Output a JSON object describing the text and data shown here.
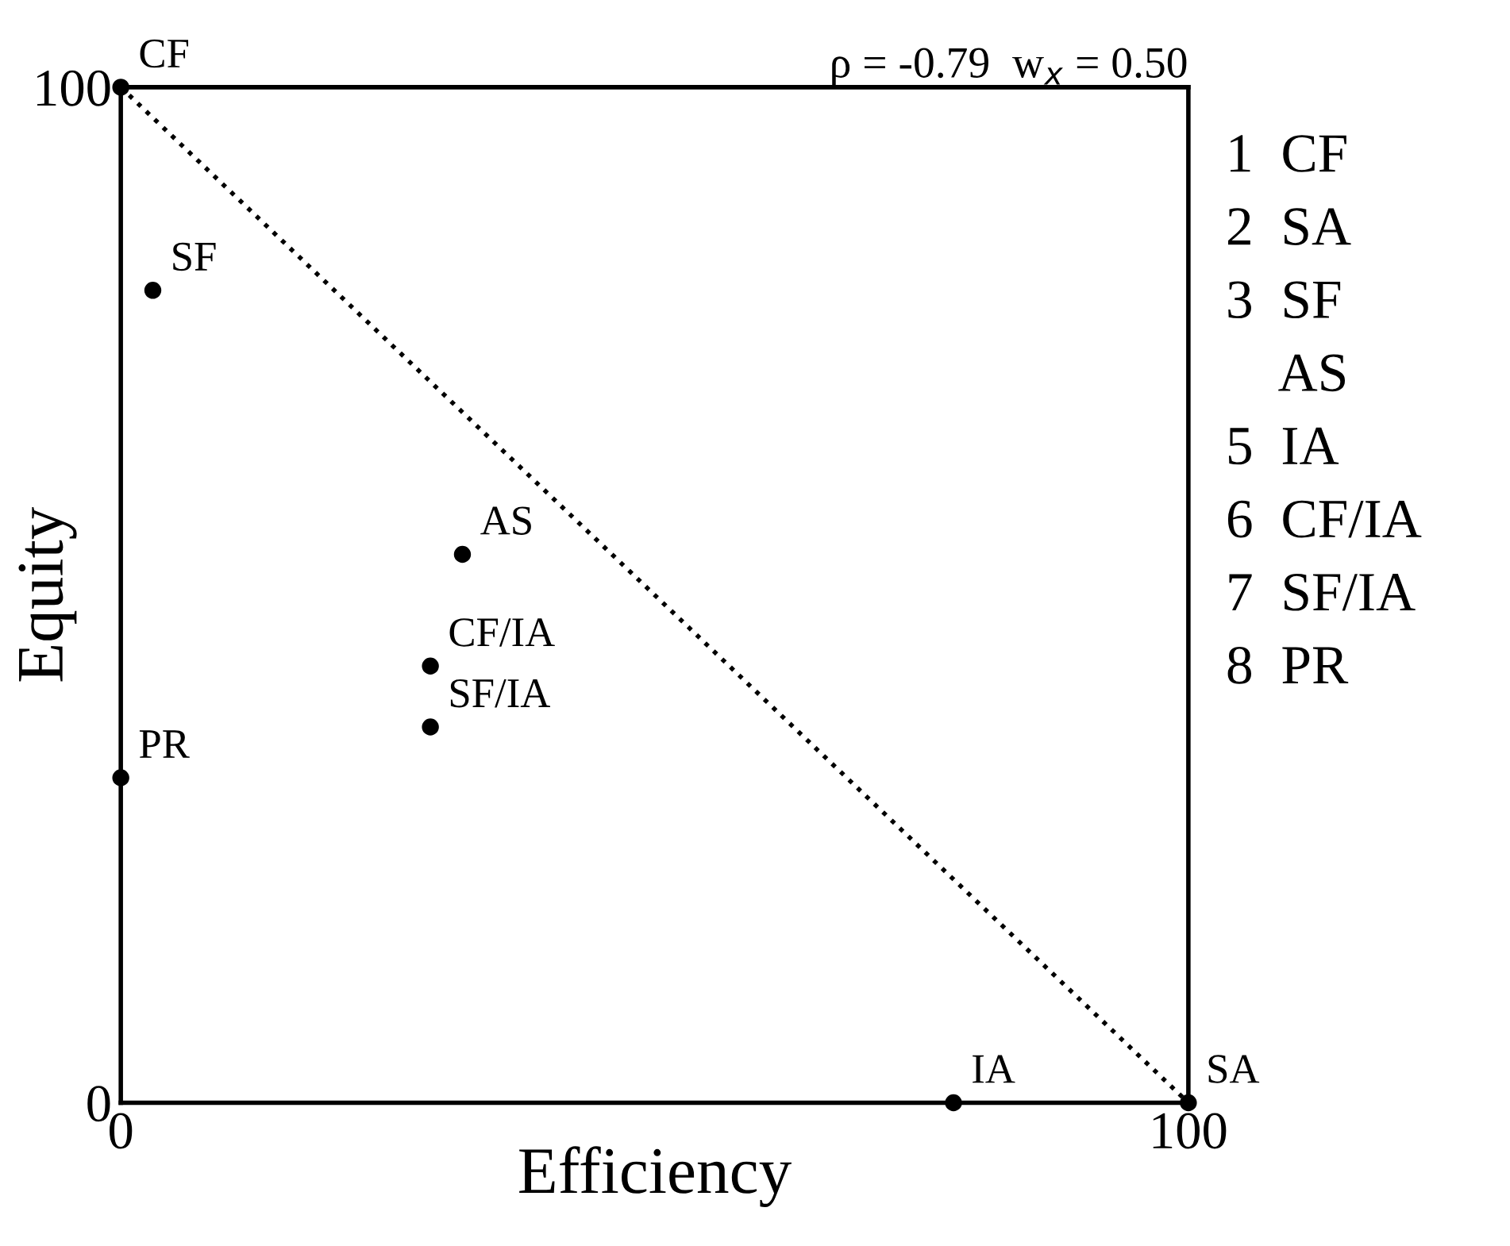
{
  "chart_data": {
    "type": "scatter",
    "title": "ρ = -0.79  w$_{x}$ = 0.50",
    "xlabel": "Efficiency",
    "ylabel": "Equity",
    "series": [
      {
        "color": "#000000",
        "marker": "circle",
        "x": [
          0,
          3,
          32,
          29,
          29,
          0,
          78,
          100
        ],
        "values": [
          100,
          80,
          54,
          43,
          37,
          32,
          0,
          0
        ]
      },
      {
        "type": "line",
        "color": "#000000",
        "marker": "none",
        "line_style": "dotted",
        "x": [
          0,
          100
        ],
        "values": [
          100,
          0
        ]
      }
    ],
    "xlim": [
      0,
      100
    ],
    "ylim": [
      0,
      100
    ],
    "xticks": [
      0,
      100
    ],
    "yticks": [
      0,
      100
    ],
    "annotations": [
      {
        "text": "CF",
        "x": 0,
        "y": 100
      },
      {
        "text": "SF",
        "x": 3,
        "y": 80
      },
      {
        "text": "AS",
        "x": 32,
        "y": 54
      },
      {
        "text": "CF/IA",
        "x": 29,
        "y": 43
      },
      {
        "text": "SF/IA",
        "x": 29,
        "y": 37
      },
      {
        "text": "PR",
        "x": 0,
        "y": 32
      },
      {
        "text": "IA",
        "x": 78,
        "y": 0
      },
      {
        "text": "SA",
        "x": 100,
        "y": 0
      },
      "1  CF",
      "2  SA",
      "3  SF",
      "    AS",
      "5  IA",
      "6  CF/IA",
      "7  SF/IA",
      "8  PR"
    ]
  }
}
